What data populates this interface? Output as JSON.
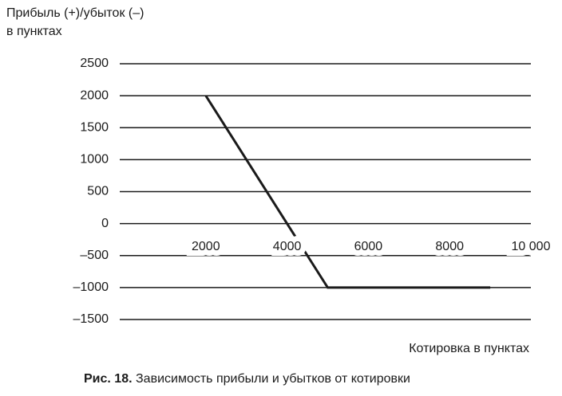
{
  "chart_data": {
    "type": "line",
    "ylabel": [
      "Прибыль (+)/убыток (–)",
      "в пунктах"
    ],
    "xlabel": "Котировка в пунктах",
    "caption": {
      "label": "Рис. 18.",
      "text": "Зависимость прибыли и убытков от котировки"
    },
    "x": [
      2000,
      5000,
      9000
    ],
    "series": [
      {
        "color": "#1a1a1a",
        "values": [
          2000,
          -1000,
          -1000
        ]
      }
    ],
    "xlim": [
      0,
      10000
    ],
    "xticks": [
      2000,
      4000,
      6000,
      8000,
      {
        "value": 10000,
        "label": "10 000"
      }
    ],
    "ylim": [
      -1500,
      2500
    ],
    "yticks": [
      {
        "value": -1500,
        "label": "–1500"
      },
      {
        "value": -1000,
        "label": "–1000"
      },
      {
        "value": -500,
        "label": "–500"
      },
      0,
      500,
      1000,
      1500,
      2000,
      2500
    ],
    "grid": true
  }
}
